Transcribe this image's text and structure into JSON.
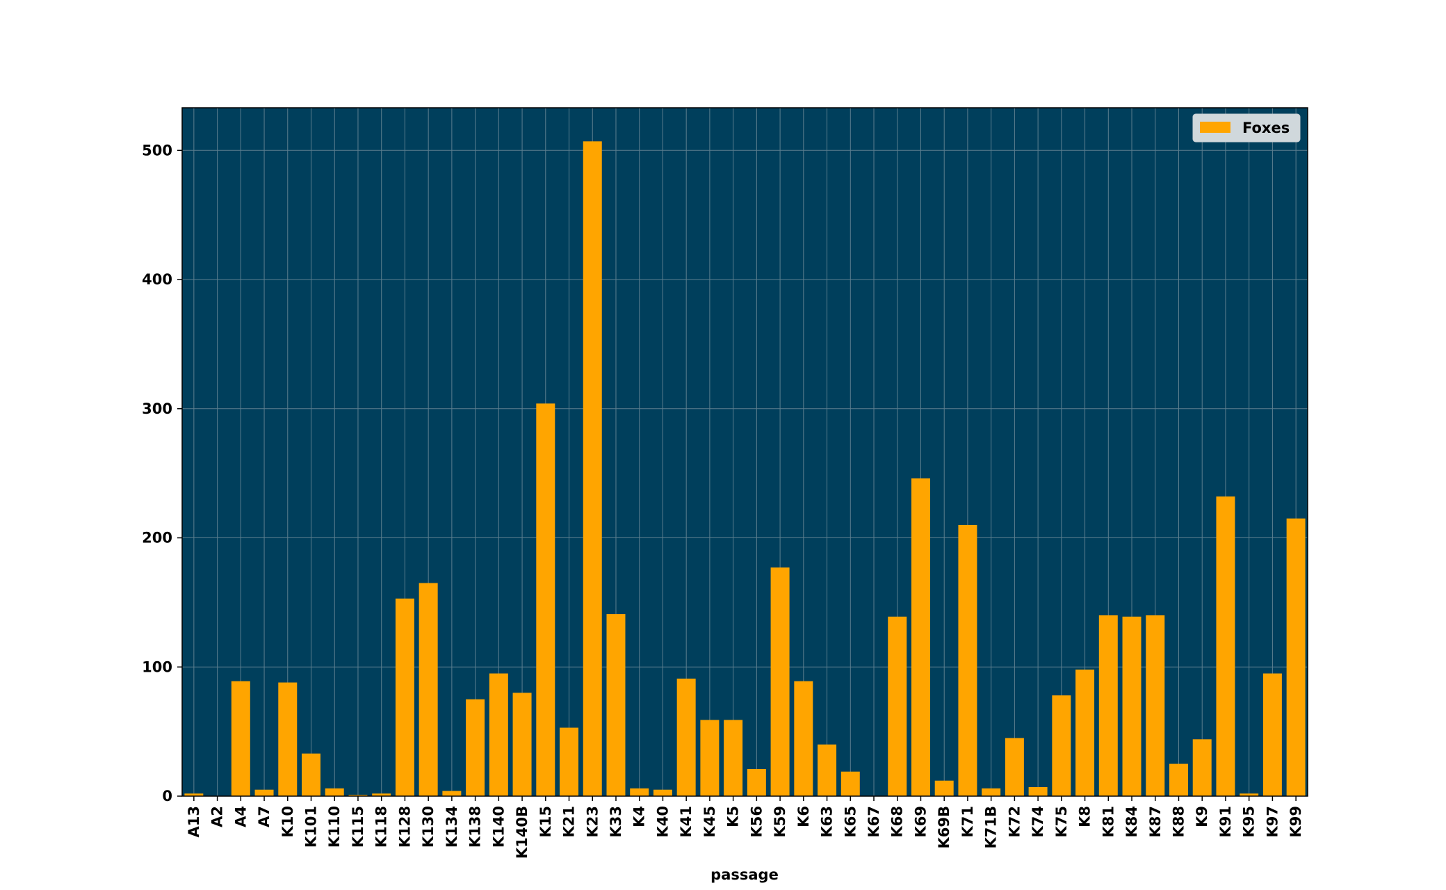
{
  "chart_data": {
    "type": "bar",
    "title": "",
    "xlabel": "passage",
    "ylabel": "",
    "ylim": [
      0,
      533
    ],
    "yticks": [
      0,
      100,
      200,
      300,
      400,
      500
    ],
    "grid": true,
    "legend_position": "top-right",
    "categories": [
      "A13",
      "A2",
      "A4",
      "A7",
      "K10",
      "K101",
      "K110",
      "K115",
      "K118",
      "K128",
      "K130",
      "K134",
      "K138",
      "K140",
      "K140B",
      "K15",
      "K21",
      "K23",
      "K33",
      "K4",
      "K40",
      "K41",
      "K45",
      "K5",
      "K56",
      "K59",
      "K6",
      "K63",
      "K65",
      "K67",
      "K68",
      "K69",
      "K69B",
      "K71",
      "K71B",
      "K72",
      "K74",
      "K75",
      "K8",
      "K81",
      "K84",
      "K87",
      "K88",
      "K9",
      "K91",
      "K95",
      "K97",
      "K99"
    ],
    "series": [
      {
        "name": "Foxes",
        "color": "#ffa500",
        "values": [
          2,
          0,
          89,
          5,
          88,
          33,
          6,
          1,
          2,
          153,
          165,
          4,
          75,
          95,
          80,
          304,
          53,
          507,
          141,
          6,
          5,
          91,
          59,
          59,
          21,
          177,
          89,
          40,
          19,
          0,
          139,
          246,
          12,
          210,
          6,
          45,
          7,
          78,
          98,
          140,
          139,
          140,
          25,
          44,
          232,
          2,
          95,
          215
        ]
      }
    ],
    "colors": {
      "plot_background": "#003f5c",
      "bar": "#ffa500",
      "grid": "#5d7f8f",
      "legend_background": "#d0d8dc"
    }
  }
}
